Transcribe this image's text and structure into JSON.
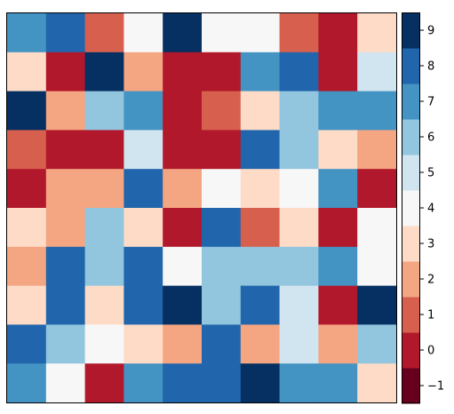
{
  "chart_data": {
    "type": "heatmap",
    "colormap": "RdBu",
    "rows": 10,
    "cols": 10,
    "values": [
      [
        7,
        8,
        1,
        4,
        9,
        4,
        4,
        1,
        0,
        3
      ],
      [
        3,
        0,
        9,
        2,
        0,
        0,
        7,
        8,
        0,
        5
      ],
      [
        9,
        2,
        6,
        7,
        0,
        1,
        3,
        6,
        7,
        7
      ],
      [
        1,
        0,
        0,
        5,
        0,
        0,
        8,
        6,
        3,
        2
      ],
      [
        0,
        2,
        2,
        8,
        2,
        4,
        3,
        4,
        7,
        0
      ],
      [
        3,
        2,
        6,
        3,
        0,
        8,
        1,
        3,
        0,
        4
      ],
      [
        2,
        8,
        6,
        8,
        4,
        6,
        6,
        6,
        7,
        4
      ],
      [
        3,
        8,
        3,
        8,
        9,
        6,
        8,
        5,
        0,
        9
      ],
      [
        8,
        6,
        4,
        3,
        2,
        8,
        2,
        5,
        2,
        6
      ],
      [
        7,
        4,
        0,
        7,
        8,
        8,
        9,
        7,
        7,
        3
      ]
    ],
    "colorbar": {
      "levels": [
        -1,
        0,
        1,
        2,
        3,
        4,
        5,
        6,
        7,
        8,
        9
      ],
      "tick_labels": [
        "−1",
        "0",
        "1",
        "2",
        "3",
        "4",
        "5",
        "6",
        "7",
        "8",
        "9"
      ],
      "colors": {
        "-1": "#67001f",
        "0": "#b2182b",
        "1": "#d6604d",
        "2": "#f4a582",
        "3": "#fddbc7",
        "4": "#f7f7f7",
        "5": "#d1e5f0",
        "6": "#92c5de",
        "7": "#4393c3",
        "8": "#2166ac",
        "9": "#053061"
      }
    },
    "axes_ticks_visible": false,
    "grid": false,
    "title": "",
    "xlabel": "",
    "ylabel": ""
  }
}
